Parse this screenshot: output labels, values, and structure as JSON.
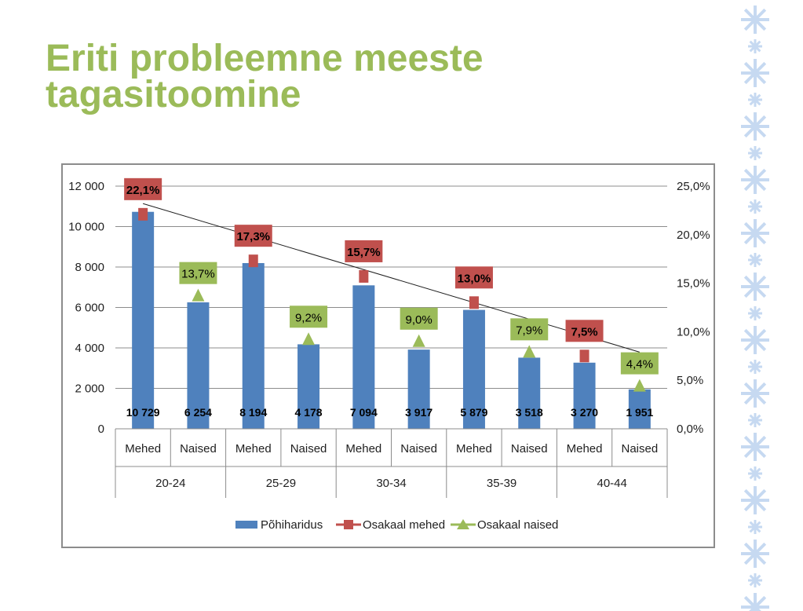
{
  "slide": {
    "title_line1": "Eriti probleemne meeste",
    "title_line2": "tagasitoomine"
  },
  "colors": {
    "title": "#9bbb59",
    "bar": "#4f81bd",
    "men": "#c0504d",
    "women": "#9bbb59",
    "ornament": "#c6d9f1"
  },
  "chart_data": {
    "type": "bar",
    "title": "",
    "categories_outer": [
      "20-24",
      "25-29",
      "30-34",
      "35-39",
      "40-44"
    ],
    "categories_inner": [
      "Mehed",
      "Naised",
      "Mehed",
      "Naised",
      "Mehed",
      "Naised",
      "Mehed",
      "Naised",
      "Mehed",
      "Naised"
    ],
    "series": [
      {
        "name": "Põhiharidus",
        "type": "bar",
        "axis": "left",
        "values": [
          10729,
          6254,
          8194,
          4178,
          7094,
          3917,
          5879,
          3518,
          3270,
          1951
        ],
        "labels": [
          "10 729",
          "6 254",
          "8 194",
          "4 178",
          "7 094",
          "3 917",
          "5 879",
          "3 518",
          "3 270",
          "1 951"
        ]
      },
      {
        "name": "Osakaal mehed",
        "type": "marker-square",
        "axis": "right",
        "indices": [
          0,
          2,
          4,
          6,
          8
        ],
        "values": [
          22.1,
          17.3,
          15.7,
          13.0,
          7.5
        ],
        "labels": [
          "22,1%",
          "17,3%",
          "15,7%",
          "13,0%",
          "7,5%"
        ]
      },
      {
        "name": "Osakaal naised",
        "type": "marker-triangle",
        "axis": "right",
        "indices": [
          1,
          3,
          5,
          7,
          9
        ],
        "values": [
          13.7,
          9.2,
          9.0,
          7.9,
          4.4
        ],
        "labels": [
          "13,7%",
          "9,2%",
          "9,0%",
          "7,9%",
          "4,4%"
        ]
      }
    ],
    "trendline": {
      "series": "Osakaal mehed",
      "from": [
        0,
        23.2
      ],
      "to": [
        9,
        7.9
      ]
    },
    "y_left": {
      "min": 0,
      "max": 12000,
      "ticks": [
        0,
        2000,
        4000,
        6000,
        8000,
        10000,
        12000
      ],
      "tick_labels": [
        "0",
        "2 000",
        "4 000",
        "6 000",
        "8 000",
        "10 000",
        "12 000"
      ]
    },
    "y_right": {
      "min": 0,
      "max": 25,
      "ticks": [
        0,
        5,
        10,
        15,
        20,
        25
      ],
      "tick_labels": [
        "0,0%",
        "5,0%",
        "10,0%",
        "15,0%",
        "20,0%",
        "25,0%"
      ]
    },
    "grid": true,
    "legend_position": "bottom"
  }
}
